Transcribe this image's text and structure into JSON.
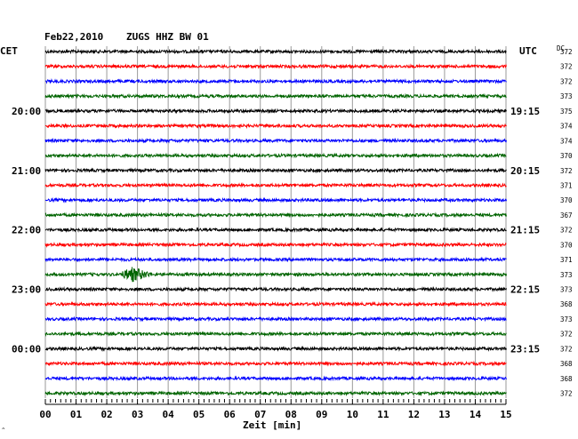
{
  "header": {
    "date": "Feb22,2010",
    "station": "ZUGS HHZ BW 01",
    "left_zone": "CET",
    "right_zone": "UTC",
    "dc_label": "DC"
  },
  "chart_data": {
    "type": "line",
    "title": "Feb22,2010    ZUGS HHZ BW 01",
    "xlabel": "Zeit [min]",
    "ylabel": "",
    "xlim": [
      0,
      15
    ],
    "x_ticks": [
      "00",
      "01",
      "02",
      "03",
      "04",
      "05",
      "06",
      "07",
      "08",
      "09",
      "10",
      "11",
      "12",
      "13",
      "14",
      "15"
    ],
    "left_time_labels": [
      {
        "row": 4,
        "label": "20:00"
      },
      {
        "row": 8,
        "label": "21:00"
      },
      {
        "row": 12,
        "label": "22:00"
      },
      {
        "row": 16,
        "label": "23:00"
      },
      {
        "row": 20,
        "label": "00:00"
      }
    ],
    "right_time_labels": [
      {
        "row": 4,
        "label": "19:15"
      },
      {
        "row": 8,
        "label": "20:15"
      },
      {
        "row": 12,
        "label": "21:15"
      },
      {
        "row": 16,
        "label": "22:15"
      },
      {
        "row": 20,
        "label": "23:15"
      }
    ],
    "trace_colors": [
      "#000000",
      "#ff0000",
      "#0000ff",
      "#006400"
    ],
    "dc_values": [
      "372",
      "372",
      "372",
      "373",
      "375",
      "374",
      "374",
      "370",
      "372",
      "371",
      "370",
      "367",
      "372",
      "370",
      "371",
      "373",
      "373",
      "368",
      "373",
      "372",
      "372",
      "368",
      "368",
      "372"
    ],
    "event": {
      "row": 15,
      "start_min": 2.4,
      "end_min": 3.5,
      "peak_min": 2.8
    }
  }
}
